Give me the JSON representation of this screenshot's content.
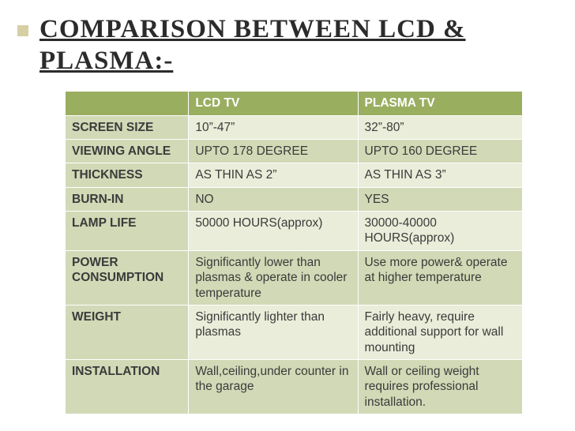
{
  "title": "COMPARISON BETWEEN LCD & PLASMA:-",
  "colors": {
    "bullet": "#d6cfa3",
    "header_bg": "#9aae60",
    "row_header_bg": "#d1d9b6",
    "row_even_bg": "#e9edd9",
    "row_odd_bg": "#d1d9b6",
    "text": "#3b3b3b",
    "header_text": "#ffffff",
    "background": "#ffffff"
  },
  "table": {
    "columns": [
      "",
      "LCD TV",
      "PLASMA TV"
    ],
    "column_widths_pct": [
      27,
      37,
      36
    ],
    "rows": [
      [
        "SCREEN SIZE",
        "10”-47”",
        "32”-80”"
      ],
      [
        "VIEWING ANGLE",
        "UPTO 178 DEGREE",
        "UPTO 160 DEGREE"
      ],
      [
        "THICKNESS",
        "AS THIN AS 2”",
        "AS THIN AS 3”"
      ],
      [
        "BURN-IN",
        "NO",
        "YES"
      ],
      [
        "LAMP LIFE",
        "50000 HOURS(approx)",
        "30000-40000 HOURS(approx)"
      ],
      [
        "POWER CONSUMPTION",
        "Significantly lower than plasmas & operate in cooler temperature",
        "Use more power& operate at higher temperature"
      ],
      [
        "WEIGHT",
        "Significantly lighter than plasmas",
        "Fairly heavy, require additional support for wall mounting"
      ],
      [
        "INSTALLATION",
        "Wall,ceiling,under counter in the garage",
        "Wall or ceiling weight requires professional installation."
      ]
    ]
  },
  "fonts": {
    "title_family": "Georgia, 'Times New Roman', serif",
    "title_size_pt": 25,
    "body_family": "Arial, Helvetica, sans-serif",
    "body_size_pt": 12
  }
}
